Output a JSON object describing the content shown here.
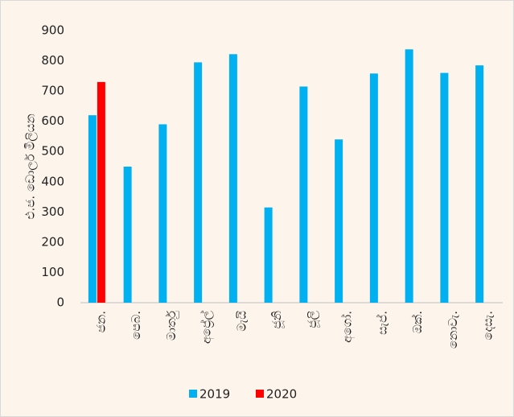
{
  "chart_data": {
    "type": "bar",
    "y_label": "එ.ජ. ඩොලර් මිලියන",
    "categories": [
      "ජන.",
      "පෙබ.",
      "මාර්තු",
      "අප්‍රේල්",
      "මැයි",
      "ජූනි",
      "ජූලි",
      "අගෝ.",
      "සැප්.",
      "ඔක්.",
      "නොවැ.",
      "දෙසැ."
    ],
    "series": [
      {
        "name": "2019",
        "color": "#00b0f0",
        "values": [
          620,
          450,
          590,
          795,
          822,
          315,
          715,
          540,
          758,
          838,
          760,
          785
        ]
      },
      {
        "name": "2020",
        "color": "#ff0000",
        "values": [
          730,
          null,
          null,
          null,
          null,
          null,
          null,
          null,
          null,
          null,
          null,
          null
        ]
      }
    ],
    "ylim": [
      0,
      900
    ],
    "yticks": [
      0,
      100,
      200,
      300,
      400,
      500,
      600,
      700,
      800,
      900
    ],
    "legend": "bottom"
  }
}
